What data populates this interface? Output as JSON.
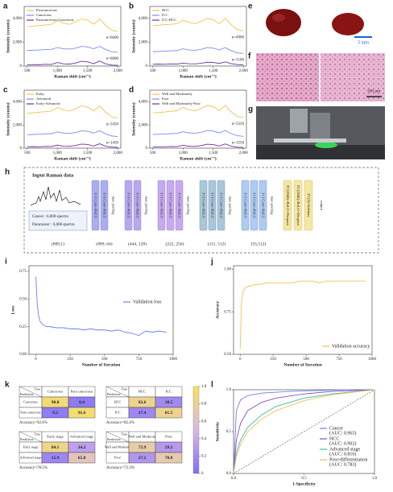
{
  "panel_labels": [
    "a",
    "b",
    "c",
    "d",
    "e",
    "f",
    "g",
    "h",
    "i",
    "j",
    "k",
    "l"
  ],
  "images": {
    "e_scale": "5 mm",
    "f_scale": "100 μm"
  },
  "chart_data": [
    {
      "type": "line",
      "xlabel": "Raman shift (cm⁻¹)",
      "ylabel": "Intensity (counts)",
      "legend": "upper left",
      "x": [
        500,
        600,
        700,
        800,
        900,
        1000,
        1100,
        1200,
        1300,
        1400,
        1500,
        1600,
        1700,
        1800,
        1900,
        2000
      ],
      "xlim": [
        450,
        2050
      ],
      "xticks": [
        500,
        {
          "value": 1000,
          "label": "1,000"
        },
        {
          "value": 1500,
          "label": "1,500"
        },
        {
          "value": 2000,
          "label": "2,000"
        }
      ],
      "ylim": [
        0,
        5000
      ],
      "yticks": [
        0,
        {
          "value": 2000,
          "label": "2,000"
        },
        {
          "value": 4000,
          "label": "4,000"
        }
      ],
      "annotations": [
        "n=6000",
        "n=6000"
      ],
      "series": [
        {
          "name": "Paracancerous",
          "color": "#f2c14e",
          "values": [
            3300,
            3350,
            3400,
            3450,
            3500,
            3800,
            3600,
            3500,
            3700,
            3950,
            3850,
            3500,
            3950,
            3400,
            3000,
            2900
          ]
        },
        {
          "name": "Cancerous",
          "color": "#7b8cf0",
          "values": [
            1300,
            1330,
            1350,
            1380,
            1400,
            1550,
            1450,
            1420,
            1500,
            1650,
            1600,
            1450,
            1650,
            1380,
            1200,
            1150
          ]
        },
        {
          "name": "Paracancerous-Cancerous",
          "color": "#7030a0",
          "values": [
            100,
            120,
            110,
            150,
            130,
            300,
            180,
            160,
            250,
            400,
            350,
            200,
            420,
            180,
            80,
            60
          ]
        }
      ]
    },
    {
      "type": "line",
      "xlabel": "Raman shift (cm⁻¹)",
      "ylabel": "Intensity (counts)",
      "legend": "upper left",
      "x": [
        500,
        600,
        700,
        800,
        900,
        1000,
        1100,
        1200,
        1300,
        1400,
        1500,
        1600,
        1700,
        1800,
        1900,
        2000
      ],
      "xlim": [
        450,
        2050
      ],
      "xticks": [
        500,
        {
          "value": 1000,
          "label": "1,000"
        },
        {
          "value": 1500,
          "label": "1,500"
        },
        {
          "value": 2000,
          "label": "2,000"
        }
      ],
      "ylim": [
        0,
        5000
      ],
      "yticks": [
        0,
        {
          "value": 2000,
          "label": "2,000"
        },
        {
          "value": 4000,
          "label": "4,000"
        }
      ],
      "annotations": [
        "n=4900",
        "n=1100"
      ],
      "series": [
        {
          "name": "HCC",
          "color": "#f2c14e",
          "values": [
            3400,
            3420,
            3480,
            3500,
            3550,
            3850,
            3650,
            3550,
            3750,
            4000,
            3900,
            3550,
            4000,
            3450,
            3050,
            2950
          ]
        },
        {
          "name": "ICC",
          "color": "#7b8cf0",
          "values": [
            1200,
            1230,
            1250,
            1280,
            1300,
            1450,
            1350,
            1320,
            1400,
            1550,
            1500,
            1350,
            1550,
            1280,
            1100,
            1050
          ]
        },
        {
          "name": "ICC-HCC",
          "color": "#7030a0",
          "values": [
            150,
            160,
            150,
            170,
            160,
            250,
            190,
            180,
            230,
            320,
            300,
            220,
            350,
            200,
            120,
            100
          ]
        }
      ]
    },
    {
      "type": "line",
      "xlabel": "Raman shift (cm⁻¹)",
      "ylabel": "Intensity (counts)",
      "legend": "upper left",
      "x": [
        500,
        600,
        700,
        800,
        900,
        1000,
        1100,
        1200,
        1300,
        1400,
        1500,
        1600,
        1700,
        1800,
        1900,
        2000
      ],
      "xlim": [
        450,
        2050
      ],
      "xticks": [
        500,
        {
          "value": 1000,
          "label": "1,000"
        },
        {
          "value": 1500,
          "label": "1,500"
        },
        {
          "value": 2000,
          "label": "2,000"
        }
      ],
      "ylim": [
        0,
        5000
      ],
      "yticks": [
        0,
        {
          "value": 2000,
          "label": "2,000"
        },
        {
          "value": 4000,
          "label": "4,000"
        }
      ],
      "annotations": [
        "n=3450",
        "n=1450"
      ],
      "series": [
        {
          "name": "Early",
          "color": "#f2c14e",
          "values": [
            3000,
            3050,
            3100,
            3150,
            3200,
            3500,
            3300,
            3200,
            3400,
            3650,
            3550,
            3200,
            3650,
            3100,
            2700,
            2600
          ]
        },
        {
          "name": "Advanced",
          "color": "#7b8cf0",
          "values": [
            1150,
            1180,
            1200,
            1230,
            1250,
            1400,
            1300,
            1270,
            1350,
            1500,
            1450,
            1300,
            1500,
            1230,
            1050,
            1000
          ]
        },
        {
          "name": "Early-Advanced",
          "color": "#7030a0",
          "values": [
            120,
            130,
            120,
            150,
            140,
            260,
            170,
            160,
            230,
            350,
            320,
            190,
            380,
            170,
            90,
            70
          ]
        }
      ]
    },
    {
      "type": "line",
      "xlabel": "Raman shift (cm⁻¹)",
      "ylabel": "Intensity (counts)",
      "legend": "upper left",
      "x": [
        500,
        600,
        700,
        800,
        900,
        1000,
        1100,
        1200,
        1300,
        1400,
        1500,
        1600,
        1700,
        1800,
        1900,
        2000
      ],
      "xlim": [
        450,
        2050
      ],
      "xticks": [
        500,
        {
          "value": 1000,
          "label": "1,000"
        },
        {
          "value": 1500,
          "label": "1,500"
        },
        {
          "value": 2000,
          "label": "2,000"
        }
      ],
      "ylim": [
        0,
        5000
      ],
      "yticks": [
        0,
        {
          "value": 2000,
          "label": "2,000"
        },
        {
          "value": 4000,
          "label": "4,000"
        }
      ],
      "annotations": [
        "n=3350",
        "n=1550"
      ],
      "series": [
        {
          "name": "Well and Moderately",
          "color": "#f2c14e",
          "values": [
            3050,
            3080,
            3120,
            3180,
            3220,
            3520,
            3320,
            3230,
            3420,
            3680,
            3580,
            3230,
            3680,
            3130,
            2730,
            2640
          ]
        },
        {
          "name": "Poor",
          "color": "#7b8cf0",
          "values": [
            1180,
            1200,
            1220,
            1250,
            1270,
            1420,
            1320,
            1290,
            1370,
            1520,
            1470,
            1320,
            1520,
            1250,
            1070,
            1020
          ]
        },
        {
          "name": "Well and Moderately-Poor",
          "color": "#7030a0",
          "values": [
            110,
            120,
            115,
            140,
            135,
            250,
            165,
            155,
            220,
            340,
            310,
            185,
            370,
            165,
            85,
            65
          ]
        }
      ]
    },
    {
      "type": "line",
      "xlabel": "Number of Iteration",
      "ylabel": "Loss",
      "legend": "center right",
      "x": [
        0,
        10,
        20,
        30,
        40,
        60,
        80,
        100,
        150,
        200,
        250,
        300,
        350,
        400,
        450,
        500,
        550,
        600,
        650,
        700,
        750,
        800,
        850,
        900,
        950
      ],
      "xlim": [
        -50,
        1000
      ],
      "xticks": [
        0,
        250,
        500,
        750,
        1000
      ],
      "ylim": [
        0,
        0.8
      ],
      "yticks": [
        {
          "value": 0,
          "label": "0.00"
        },
        0.25,
        {
          "value": 0.5,
          "label": "0.50"
        },
        0.75
      ],
      "series": [
        {
          "name": "Validation loss",
          "color": "#6f7fe8",
          "values": [
            0.7,
            0.45,
            0.35,
            0.3,
            0.28,
            0.26,
            0.25,
            0.25,
            0.24,
            0.24,
            0.23,
            0.23,
            0.22,
            0.23,
            0.22,
            0.22,
            0.21,
            0.22,
            0.2,
            0.19,
            0.17,
            0.21,
            0.2,
            0.21,
            0.2
          ]
        }
      ]
    },
    {
      "type": "line",
      "xlabel": "Number of Iteration",
      "ylabel": "Accuracy",
      "legend": "lower right",
      "x": [
        0,
        10,
        20,
        30,
        40,
        60,
        80,
        100,
        150,
        200,
        250,
        300,
        350,
        400,
        450,
        500,
        550,
        600,
        650,
        700,
        750,
        800,
        850,
        900,
        950
      ],
      "xlim": [
        -50,
        1000
      ],
      "xticks": [
        0,
        250,
        500,
        750,
        1000
      ],
      "ylim": [
        0.5,
        1.02
      ],
      "yticks": [
        {
          "value": 0.5,
          "label": "0.50"
        },
        0.75,
        {
          "value": 1,
          "label": "1.00"
        }
      ],
      "series": [
        {
          "name": "Validation accuracy",
          "color": "#f2c14e",
          "values": [
            0.53,
            0.8,
            0.86,
            0.88,
            0.89,
            0.9,
            0.9,
            0.91,
            0.91,
            0.92,
            0.92,
            0.92,
            0.92,
            0.92,
            0.93,
            0.93,
            0.93,
            0.92,
            0.93,
            0.93,
            0.93,
            0.93,
            0.93,
            0.93,
            0.93
          ]
        }
      ]
    },
    {
      "type": "line",
      "xlabel": "1-Specificity",
      "ylabel": "Sensitivity",
      "legend": "lower right",
      "reference_line": true,
      "xlim": [
        0,
        1
      ],
      "xticks": [
        {
          "value": 0,
          "label": "0.0"
        },
        0.5,
        {
          "value": 1,
          "label": "1.0"
        }
      ],
      "ylim": [
        0,
        1
      ],
      "yticks": [
        {
          "value": 0,
          "label": "0.0"
        },
        0.5,
        {
          "value": 1,
          "label": "1.0"
        }
      ],
      "series": [
        {
          "name": "Cancer",
          "auc_label": "(AUC: 0.965)",
          "color": "#6f7fe8",
          "x": [
            0,
            0.02,
            0.05,
            0.1,
            0.2,
            0.4,
            0.6,
            0.8,
            1
          ],
          "values": [
            0,
            0.75,
            0.88,
            0.93,
            0.96,
            0.98,
            0.99,
            1,
            1
          ]
        },
        {
          "name": "HCC",
          "auc_label": "(AUC: 0.902)",
          "color": "#8a4fc8",
          "x": [
            0,
            0.02,
            0.05,
            0.1,
            0.2,
            0.3,
            0.5,
            0.7,
            1
          ],
          "values": [
            0,
            0.4,
            0.6,
            0.75,
            0.85,
            0.9,
            0.95,
            0.98,
            1
          ]
        },
        {
          "name": "Advanced stage",
          "auc_label": "(AUC: 0.816)",
          "color": "#3fb8a8",
          "x": [
            0,
            0.02,
            0.05,
            0.1,
            0.2,
            0.3,
            0.5,
            0.7,
            1
          ],
          "values": [
            0,
            0.25,
            0.4,
            0.55,
            0.7,
            0.8,
            0.9,
            0.95,
            1
          ]
        },
        {
          "name": "Poor-differentiation",
          "auc_label": "(AUC: 0.783)",
          "color": "#f2c14e",
          "x": [
            0,
            0.02,
            0.05,
            0.1,
            0.2,
            0.3,
            0.5,
            0.7,
            1
          ],
          "values": [
            0,
            0.2,
            0.35,
            0.5,
            0.65,
            0.75,
            0.87,
            0.94,
            1
          ]
        }
      ]
    }
  ],
  "diagram": {
    "input_title": "Input Raman data",
    "input_counts": [
      "Cancer : 6,000 spectra",
      "Paracancer : 6,000 spectra"
    ],
    "input_dims": "(889,1)",
    "stages": [
      {
        "layers": [
          "3×3 Conv+ReLU",
          "3×3 Conv+ReLU"
        ],
        "pool": "max pooling",
        "dims": "(889, 64)",
        "color": "#a9aef2"
      },
      {
        "layers": [
          "3×3 Conv+ReLU",
          "3×3 Conv+ReLU"
        ],
        "pool": "max pooling",
        "dims": "(444, 128)",
        "color": "#b9a8ee"
      },
      {
        "layers": [
          "3×3 Conv+ReLU",
          "3×3 Conv+ReLU",
          "3×3 Conv+ReLU"
        ],
        "pool": "max pooling",
        "dims": "(222, 256)",
        "color": "#c8a9ee"
      },
      {
        "layers": [
          "3×3 Conv+ReLU",
          "3×3 Conv+ReLU",
          "3×3 Conv+ReLU"
        ],
        "pool": "max pooling",
        "dims": "(111, 512)",
        "color": "#a8c8d8"
      },
      {
        "layers": [
          "3×3 Conv+ReLU",
          "3×3 Conv+ReLU",
          "3×3 Conv+ReLU"
        ],
        "pool": "max pooling",
        "dims": "(55,512)",
        "color": "#aecbf2"
      }
    ],
    "fc": [
      "FC(2048)+ReLU+Dropout",
      "FC(2048)+ReLU+Dropout",
      "FC(2)+Softmax"
    ],
    "fc_color": "#f5e6a0",
    "output": "output"
  },
  "confusion": {
    "corner_true": "True",
    "corner_prediction": "Prediction",
    "colorbar_ticks": [
      0,
      0.2,
      0.4,
      0.6,
      0.8,
      {
        "value": 1,
        "label": "1.0"
      }
    ],
    "matrices": [
      {
        "columns": [
          "Cancerous",
          "Para cancerous"
        ],
        "rows": [
          "Cancerous",
          "Para cancerous"
        ],
        "values": [
          [
            90.8,
            8.4
          ],
          [
            9.2,
            91.6
          ]
        ],
        "accuracy": "Accuracy=92.6%"
      },
      {
        "columns": [
          "HCC",
          "ICC"
        ],
        "rows": [
          "HCC",
          "ICC"
        ],
        "values": [
          [
            82.6,
            18.5
          ],
          [
            17.4,
            81.5
          ]
        ],
        "accuracy": "Accuracy=82.4%"
      },
      {
        "columns": [
          "Early stage",
          "Advanced stage"
        ],
        "rows": [
          "Early stage",
          "Advanced stage"
        ],
        "values": [
          [
            84.1,
            34.2
          ],
          [
            15.9,
            65.8
          ]
        ],
        "accuracy": "Accuracy=78.5%"
      },
      {
        "columns": [
          "Well and Moderate",
          "Poor"
        ],
        "rows": [
          "Well and Moderate",
          "Poor"
        ],
        "values": [
          [
            72.9,
            29.2
          ],
          [
            27.1,
            70.8
          ]
        ],
        "accuracy": "Accuracy=72.3%"
      }
    ]
  }
}
